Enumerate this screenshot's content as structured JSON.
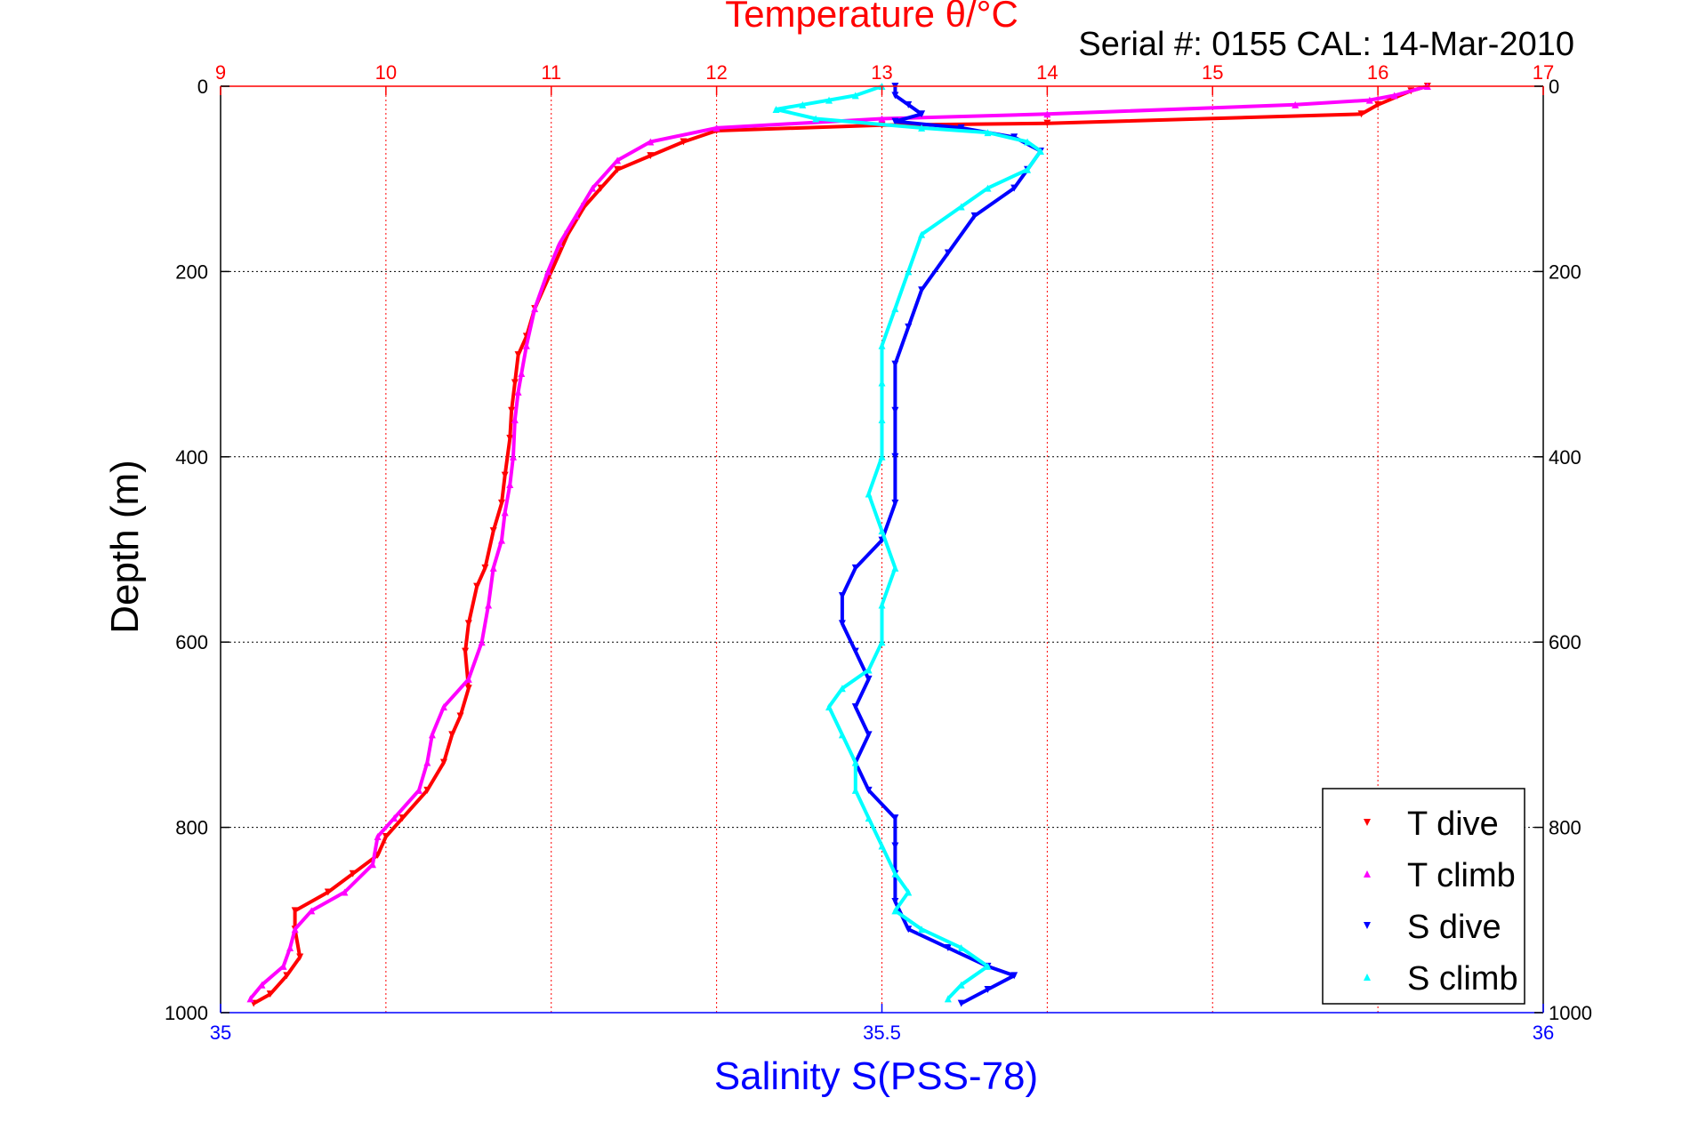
{
  "chart_data": {
    "type": "scatter",
    "title": "Temperature θ/°C",
    "subtitle": "Serial #: 0155  CAL: 14-Mar-2010",
    "ylabel": "Depth (m)",
    "xlabel_bottom": "Salinity S(PSS-78)",
    "xlabel_top": "Temperature θ/°C",
    "ylim": [
      0,
      1000
    ],
    "y_reversed": true,
    "x_bottom_lim": [
      35,
      36
    ],
    "x_top_lim": [
      9,
      17
    ],
    "y_ticks": [
      "0",
      "200",
      "400",
      "600",
      "800",
      "1000"
    ],
    "x_bottom_ticks": [
      "35",
      "35.5",
      "36"
    ],
    "x_top_ticks": [
      "9",
      "10",
      "11",
      "12",
      "13",
      "14",
      "15",
      "16",
      "17"
    ],
    "grid": true,
    "legend_position": "bottom-right",
    "colors": {
      "temperature_axis": "#ff0000",
      "salinity_axis": "#0000ff",
      "t_dive": "#ff0000",
      "t_climb": "#ff00ff",
      "s_dive": "#0000ff",
      "s_climb": "#00ffff"
    },
    "series": [
      {
        "name": "T dive",
        "axis": "top",
        "marker": "down-triangle",
        "color": "#ff0000",
        "points": [
          [
            16.3,
            0
          ],
          [
            16.2,
            5
          ],
          [
            16.0,
            20
          ],
          [
            15.9,
            30
          ],
          [
            14.0,
            40
          ],
          [
            13.0,
            42
          ],
          [
            12.0,
            48
          ],
          [
            11.8,
            60
          ],
          [
            11.6,
            75
          ],
          [
            11.4,
            90
          ],
          [
            11.3,
            110
          ],
          [
            11.2,
            130
          ],
          [
            11.1,
            160
          ],
          [
            11.0,
            200
          ],
          [
            10.9,
            240
          ],
          [
            10.85,
            270
          ],
          [
            10.8,
            290
          ],
          [
            10.78,
            320
          ],
          [
            10.76,
            350
          ],
          [
            10.75,
            380
          ],
          [
            10.72,
            420
          ],
          [
            10.7,
            450
          ],
          [
            10.65,
            480
          ],
          [
            10.6,
            520
          ],
          [
            10.55,
            540
          ],
          [
            10.5,
            580
          ],
          [
            10.48,
            610
          ],
          [
            10.5,
            650
          ],
          [
            10.45,
            680
          ],
          [
            10.4,
            700
          ],
          [
            10.35,
            730
          ],
          [
            10.25,
            760
          ],
          [
            10.1,
            790
          ],
          [
            10.0,
            810
          ],
          [
            9.95,
            830
          ],
          [
            9.8,
            850
          ],
          [
            9.65,
            870
          ],
          [
            9.45,
            890
          ],
          [
            9.45,
            910
          ],
          [
            9.48,
            940
          ],
          [
            9.4,
            960
          ],
          [
            9.3,
            980
          ],
          [
            9.2,
            990
          ]
        ]
      },
      {
        "name": "T climb",
        "axis": "top",
        "marker": "up-triangle",
        "color": "#ff00ff",
        "points": [
          [
            16.3,
            0
          ],
          [
            16.1,
            10
          ],
          [
            15.95,
            15
          ],
          [
            15.5,
            20
          ],
          [
            14.0,
            30
          ],
          [
            13.0,
            35
          ],
          [
            12.0,
            45
          ],
          [
            11.6,
            60
          ],
          [
            11.4,
            80
          ],
          [
            11.25,
            110
          ],
          [
            11.15,
            140
          ],
          [
            11.05,
            170
          ],
          [
            10.98,
            200
          ],
          [
            10.9,
            240
          ],
          [
            10.85,
            280
          ],
          [
            10.82,
            310
          ],
          [
            10.8,
            330
          ],
          [
            10.78,
            360
          ],
          [
            10.77,
            400
          ],
          [
            10.75,
            430
          ],
          [
            10.72,
            460
          ],
          [
            10.7,
            490
          ],
          [
            10.65,
            520
          ],
          [
            10.62,
            560
          ],
          [
            10.58,
            600
          ],
          [
            10.5,
            640
          ],
          [
            10.35,
            670
          ],
          [
            10.28,
            700
          ],
          [
            10.25,
            730
          ],
          [
            10.2,
            760
          ],
          [
            10.05,
            790
          ],
          [
            9.95,
            810
          ],
          [
            9.92,
            840
          ],
          [
            9.75,
            870
          ],
          [
            9.55,
            890
          ],
          [
            9.45,
            910
          ],
          [
            9.42,
            930
          ],
          [
            9.38,
            950
          ],
          [
            9.25,
            970
          ],
          [
            9.18,
            985
          ]
        ]
      },
      {
        "name": "S dive",
        "axis": "bottom",
        "marker": "down-triangle",
        "color": "#0000ff",
        "points": [
          [
            35.51,
            0
          ],
          [
            35.51,
            10
          ],
          [
            35.52,
            20
          ],
          [
            35.53,
            30
          ],
          [
            35.51,
            38
          ],
          [
            35.56,
            45
          ],
          [
            35.6,
            55
          ],
          [
            35.62,
            70
          ],
          [
            35.61,
            90
          ],
          [
            35.6,
            110
          ],
          [
            35.57,
            140
          ],
          [
            35.55,
            180
          ],
          [
            35.53,
            220
          ],
          [
            35.52,
            260
          ],
          [
            35.51,
            300
          ],
          [
            35.51,
            350
          ],
          [
            35.51,
            400
          ],
          [
            35.51,
            450
          ],
          [
            35.5,
            490
          ],
          [
            35.48,
            520
          ],
          [
            35.47,
            550
          ],
          [
            35.47,
            580
          ],
          [
            35.48,
            610
          ],
          [
            35.49,
            640
          ],
          [
            35.48,
            670
          ],
          [
            35.49,
            700
          ],
          [
            35.48,
            730
          ],
          [
            35.49,
            760
          ],
          [
            35.51,
            790
          ],
          [
            35.51,
            820
          ],
          [
            35.51,
            850
          ],
          [
            35.51,
            880
          ],
          [
            35.52,
            910
          ],
          [
            35.55,
            930
          ],
          [
            35.58,
            950
          ],
          [
            35.6,
            960
          ],
          [
            35.58,
            975
          ],
          [
            35.56,
            990
          ]
        ]
      },
      {
        "name": "S climb",
        "axis": "bottom",
        "marker": "up-triangle",
        "color": "#00ffff",
        "points": [
          [
            35.5,
            0
          ],
          [
            35.48,
            10
          ],
          [
            35.46,
            15
          ],
          [
            35.44,
            20
          ],
          [
            35.42,
            25
          ],
          [
            35.45,
            35
          ],
          [
            35.53,
            45
          ],
          [
            35.58,
            50
          ],
          [
            35.61,
            60
          ],
          [
            35.62,
            70
          ],
          [
            35.61,
            90
          ],
          [
            35.58,
            110
          ],
          [
            35.56,
            130
          ],
          [
            35.53,
            160
          ],
          [
            35.52,
            200
          ],
          [
            35.51,
            240
          ],
          [
            35.5,
            280
          ],
          [
            35.5,
            320
          ],
          [
            35.5,
            360
          ],
          [
            35.5,
            400
          ],
          [
            35.49,
            440
          ],
          [
            35.5,
            480
          ],
          [
            35.51,
            520
          ],
          [
            35.5,
            560
          ],
          [
            35.5,
            600
          ],
          [
            35.49,
            630
          ],
          [
            35.47,
            650
          ],
          [
            35.46,
            670
          ],
          [
            35.47,
            700
          ],
          [
            35.48,
            730
          ],
          [
            35.48,
            760
          ],
          [
            35.49,
            790
          ],
          [
            35.5,
            820
          ],
          [
            35.51,
            850
          ],
          [
            35.52,
            870
          ],
          [
            35.51,
            890
          ],
          [
            35.53,
            910
          ],
          [
            35.56,
            930
          ],
          [
            35.58,
            950
          ],
          [
            35.56,
            970
          ],
          [
            35.55,
            985
          ]
        ]
      }
    ]
  }
}
